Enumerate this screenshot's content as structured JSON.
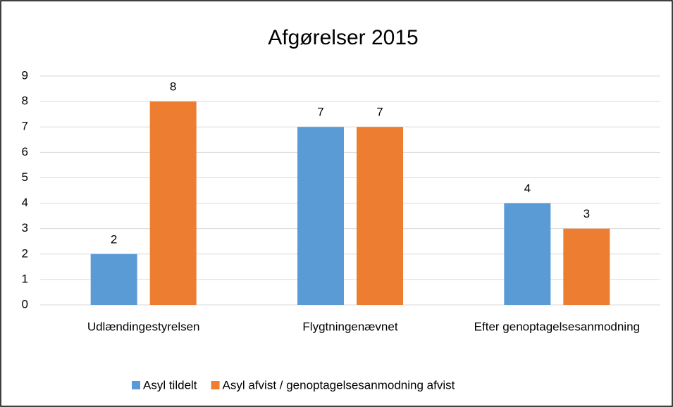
{
  "chart_data": {
    "type": "bar",
    "title": "Afgørelser 2015",
    "categories": [
      "Udlændingestyrelsen",
      "Flygtningenævnet",
      "Efter genoptagelsesanmodning"
    ],
    "series": [
      {
        "name": "Asyl tildelt",
        "color": "#5b9bd5",
        "values": [
          2,
          7,
          4
        ]
      },
      {
        "name": "Asyl afvist / genoptagelsesanmodning afvist",
        "color": "#ed7d31",
        "values": [
          8,
          7,
          3
        ]
      }
    ],
    "ylim": [
      0,
      9
    ],
    "yticks": [
      0,
      1,
      2,
      3,
      4,
      5,
      6,
      7,
      8,
      9
    ],
    "grid": true,
    "legend": "bottom"
  }
}
